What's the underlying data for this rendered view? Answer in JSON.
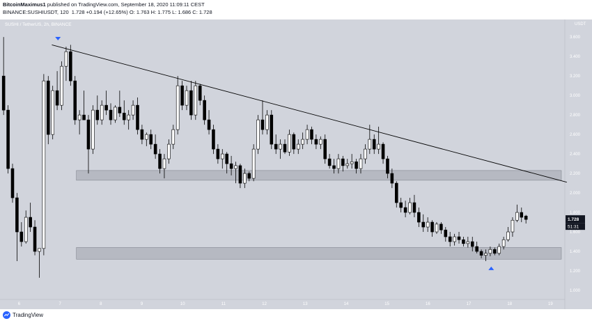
{
  "header": {
    "author": "BitcoinMaximus1",
    "published": "published on TradingView.com, September 18, 2020 11:09:11 CEST",
    "ticker_line": "BINANCE:SUSHIUSDT, 120",
    "last": "1.728",
    "change": "+0.194 (+12.65%)",
    "ohlc": "O: 1.763  H: 1.775  L: 1.686  C: 1.728"
  },
  "chart": {
    "symbol_label": "SUSHI / TetherUS, 2h, BINANCE",
    "currency": "USDT",
    "y_ticks": [
      "3.600",
      "3.400",
      "3.200",
      "3.000",
      "2.800",
      "2.600",
      "2.400",
      "2.200",
      "2.000",
      "1.800",
      "1.600",
      "1.400",
      "1.200",
      "1.000"
    ],
    "x_ticks": [
      "6",
      "7",
      "8",
      "9",
      "10",
      "11",
      "12",
      "13",
      "14",
      "15",
      "16",
      "17",
      "18",
      "19"
    ],
    "price_label": "1.728",
    "countdown": "51:31",
    "colors": {
      "background": "#d1d4dc",
      "up": "#ffffff",
      "down": "#000000",
      "marker": "#2962ff",
      "zone": "#9598a1"
    }
  },
  "chart_data": {
    "type": "candlestick",
    "pair": "SUSHI/USDT",
    "interval": "2h",
    "x_range": [
      5.6,
      19.3
    ],
    "ylim": [
      0.95,
      3.68
    ],
    "resistance_line": {
      "from": [
        6.8,
        3.52
      ],
      "to": [
        19.4,
        2.11
      ]
    },
    "support_zones": [
      [
        2.13,
        2.23
      ],
      [
        1.32,
        1.44
      ]
    ],
    "markers": [
      {
        "x": 6.95,
        "y": 3.58,
        "direction": "down"
      },
      {
        "x": 17.55,
        "y": 1.23,
        "direction": "up"
      }
    ],
    "candles": [
      {
        "o": 3.2,
        "h": 3.6,
        "l": 2.8,
        "c": 2.85
      },
      {
        "o": 2.85,
        "h": 2.9,
        "l": 2.2,
        "c": 2.25
      },
      {
        "o": 2.25,
        "h": 2.3,
        "l": 1.9,
        "c": 1.95
      },
      {
        "o": 1.95,
        "h": 2.0,
        "l": 1.3,
        "c": 1.6
      },
      {
        "o": 1.6,
        "h": 1.7,
        "l": 1.45,
        "c": 1.5
      },
      {
        "o": 1.5,
        "h": 1.82,
        "l": 1.48,
        "c": 1.75
      },
      {
        "o": 1.75,
        "h": 1.9,
        "l": 1.6,
        "c": 1.65
      },
      {
        "o": 1.65,
        "h": 1.72,
        "l": 1.36,
        "c": 1.4
      },
      {
        "o": 1.4,
        "h": 1.43,
        "l": 1.13,
        "c": 1.43
      },
      {
        "o": 1.43,
        "h": 3.22,
        "l": 1.36,
        "c": 3.15
      },
      {
        "o": 3.15,
        "h": 3.2,
        "l": 2.5,
        "c": 2.6
      },
      {
        "o": 2.6,
        "h": 3.1,
        "l": 2.55,
        "c": 3.05
      },
      {
        "o": 3.05,
        "h": 3.25,
        "l": 2.85,
        "c": 2.9
      },
      {
        "o": 2.9,
        "h": 3.35,
        "l": 2.85,
        "c": 3.3
      },
      {
        "o": 3.3,
        "h": 3.5,
        "l": 3.15,
        "c": 3.45
      },
      {
        "o": 3.45,
        "h": 3.52,
        "l": 3.1,
        "c": 3.15
      },
      {
        "o": 3.15,
        "h": 3.2,
        "l": 2.7,
        "c": 2.75
      },
      {
        "o": 2.75,
        "h": 2.85,
        "l": 2.6,
        "c": 2.8
      },
      {
        "o": 2.8,
        "h": 3.05,
        "l": 2.75,
        "c": 2.75
      },
      {
        "o": 2.75,
        "h": 2.8,
        "l": 2.2,
        "c": 2.45
      },
      {
        "o": 2.45,
        "h": 2.9,
        "l": 2.4,
        "c": 2.85
      },
      {
        "o": 2.85,
        "h": 3.0,
        "l": 2.7,
        "c": 2.75
      },
      {
        "o": 2.75,
        "h": 2.95,
        "l": 2.7,
        "c": 2.9
      },
      {
        "o": 2.9,
        "h": 3.05,
        "l": 2.8,
        "c": 2.85
      },
      {
        "o": 2.85,
        "h": 2.92,
        "l": 2.7,
        "c": 2.75
      },
      {
        "o": 2.75,
        "h": 2.9,
        "l": 2.72,
        "c": 2.88
      },
      {
        "o": 2.88,
        "h": 3.05,
        "l": 2.78,
        "c": 2.82
      },
      {
        "o": 2.82,
        "h": 2.95,
        "l": 2.7,
        "c": 2.75
      },
      {
        "o": 2.75,
        "h": 2.85,
        "l": 2.65,
        "c": 2.8
      },
      {
        "o": 2.8,
        "h": 2.95,
        "l": 2.75,
        "c": 2.9
      },
      {
        "o": 2.9,
        "h": 2.98,
        "l": 2.6,
        "c": 2.65
      },
      {
        "o": 2.65,
        "h": 2.7,
        "l": 2.5,
        "c": 2.55
      },
      {
        "o": 2.55,
        "h": 2.62,
        "l": 2.48,
        "c": 2.6
      },
      {
        "o": 2.6,
        "h": 2.65,
        "l": 2.45,
        "c": 2.5
      },
      {
        "o": 2.5,
        "h": 2.6,
        "l": 2.35,
        "c": 2.4
      },
      {
        "o": 2.4,
        "h": 2.45,
        "l": 2.2,
        "c": 2.25
      },
      {
        "o": 2.25,
        "h": 2.4,
        "l": 2.15,
        "c": 2.35
      },
      {
        "o": 2.35,
        "h": 2.55,
        "l": 2.3,
        "c": 2.5
      },
      {
        "o": 2.5,
        "h": 2.7,
        "l": 2.45,
        "c": 2.65
      },
      {
        "o": 2.65,
        "h": 3.2,
        "l": 2.6,
        "c": 3.1
      },
      {
        "o": 3.1,
        "h": 3.15,
        "l": 2.85,
        "c": 2.9
      },
      {
        "o": 2.9,
        "h": 3.1,
        "l": 2.85,
        "c": 3.05
      },
      {
        "o": 3.05,
        "h": 3.15,
        "l": 2.75,
        "c": 2.8
      },
      {
        "o": 2.8,
        "h": 3.15,
        "l": 2.75,
        "c": 3.1
      },
      {
        "o": 3.1,
        "h": 3.12,
        "l": 2.9,
        "c": 2.95
      },
      {
        "o": 2.95,
        "h": 3.0,
        "l": 2.7,
        "c": 2.75
      },
      {
        "o": 2.75,
        "h": 2.85,
        "l": 2.6,
        "c": 2.65
      },
      {
        "o": 2.65,
        "h": 2.7,
        "l": 2.4,
        "c": 2.45
      },
      {
        "o": 2.45,
        "h": 2.5,
        "l": 2.3,
        "c": 2.35
      },
      {
        "o": 2.35,
        "h": 2.45,
        "l": 2.25,
        "c": 2.4
      },
      {
        "o": 2.4,
        "h": 2.42,
        "l": 2.2,
        "c": 2.3
      },
      {
        "o": 2.3,
        "h": 2.38,
        "l": 2.18,
        "c": 2.25
      },
      {
        "o": 2.25,
        "h": 2.32,
        "l": 2.1,
        "c": 2.28
      },
      {
        "o": 2.28,
        "h": 2.3,
        "l": 2.05,
        "c": 2.1
      },
      {
        "o": 2.1,
        "h": 2.25,
        "l": 2.05,
        "c": 2.2
      },
      {
        "o": 2.2,
        "h": 2.22,
        "l": 2.12,
        "c": 2.15
      },
      {
        "o": 2.15,
        "h": 2.5,
        "l": 2.12,
        "c": 2.45
      },
      {
        "o": 2.45,
        "h": 2.8,
        "l": 2.4,
        "c": 2.75
      },
      {
        "o": 2.75,
        "h": 2.95,
        "l": 2.6,
        "c": 2.65
      },
      {
        "o": 2.65,
        "h": 2.85,
        "l": 2.6,
        "c": 2.8
      },
      {
        "o": 2.8,
        "h": 2.85,
        "l": 2.45,
        "c": 2.5
      },
      {
        "o": 2.5,
        "h": 2.6,
        "l": 2.4,
        "c": 2.45
      },
      {
        "o": 2.45,
        "h": 2.55,
        "l": 2.35,
        "c": 2.5
      },
      {
        "o": 2.5,
        "h": 2.55,
        "l": 2.4,
        "c": 2.42
      },
      {
        "o": 2.42,
        "h": 2.65,
        "l": 2.38,
        "c": 2.6
      },
      {
        "o": 2.6,
        "h": 2.62,
        "l": 2.4,
        "c": 2.45
      },
      {
        "o": 2.45,
        "h": 2.55,
        "l": 2.4,
        "c": 2.5
      },
      {
        "o": 2.5,
        "h": 2.62,
        "l": 2.45,
        "c": 2.55
      },
      {
        "o": 2.55,
        "h": 2.7,
        "l": 2.5,
        "c": 2.65
      },
      {
        "o": 2.65,
        "h": 2.68,
        "l": 2.5,
        "c": 2.55
      },
      {
        "o": 2.55,
        "h": 2.6,
        "l": 2.45,
        "c": 2.5
      },
      {
        "o": 2.5,
        "h": 2.58,
        "l": 2.45,
        "c": 2.55
      },
      {
        "o": 2.55,
        "h": 2.6,
        "l": 2.3,
        "c": 2.35
      },
      {
        "o": 2.35,
        "h": 2.4,
        "l": 2.25,
        "c": 2.28
      },
      {
        "o": 2.28,
        "h": 2.35,
        "l": 2.2,
        "c": 2.25
      },
      {
        "o": 2.25,
        "h": 2.4,
        "l": 2.2,
        "c": 2.35
      },
      {
        "o": 2.35,
        "h": 2.38,
        "l": 2.22,
        "c": 2.28
      },
      {
        "o": 2.28,
        "h": 2.35,
        "l": 2.25,
        "c": 2.3
      },
      {
        "o": 2.3,
        "h": 2.4,
        "l": 2.25,
        "c": 2.32
      },
      {
        "o": 2.32,
        "h": 2.35,
        "l": 2.2,
        "c": 2.25
      },
      {
        "o": 2.25,
        "h": 2.4,
        "l": 2.2,
        "c": 2.35
      },
      {
        "o": 2.35,
        "h": 2.5,
        "l": 2.3,
        "c": 2.45
      },
      {
        "o": 2.45,
        "h": 2.7,
        "l": 2.4,
        "c": 2.55
      },
      {
        "o": 2.55,
        "h": 2.6,
        "l": 2.4,
        "c": 2.45
      },
      {
        "o": 2.45,
        "h": 2.68,
        "l": 2.4,
        "c": 2.5
      },
      {
        "o": 2.5,
        "h": 2.52,
        "l": 2.3,
        "c": 2.35
      },
      {
        "o": 2.35,
        "h": 2.38,
        "l": 2.15,
        "c": 2.2
      },
      {
        "o": 2.2,
        "h": 2.25,
        "l": 2.05,
        "c": 2.1
      },
      {
        "o": 2.1,
        "h": 2.12,
        "l": 1.85,
        "c": 1.9
      },
      {
        "o": 1.9,
        "h": 1.95,
        "l": 1.8,
        "c": 1.85
      },
      {
        "o": 1.85,
        "h": 1.92,
        "l": 1.75,
        "c": 1.8
      },
      {
        "o": 1.8,
        "h": 1.95,
        "l": 1.78,
        "c": 1.9
      },
      {
        "o": 1.9,
        "h": 1.98,
        "l": 1.75,
        "c": 1.8
      },
      {
        "o": 1.8,
        "h": 1.85,
        "l": 1.65,
        "c": 1.7
      },
      {
        "o": 1.7,
        "h": 1.78,
        "l": 1.6,
        "c": 1.65
      },
      {
        "o": 1.65,
        "h": 1.75,
        "l": 1.6,
        "c": 1.7
      },
      {
        "o": 1.7,
        "h": 1.72,
        "l": 1.55,
        "c": 1.6
      },
      {
        "o": 1.6,
        "h": 1.7,
        "l": 1.58,
        "c": 1.68
      },
      {
        "o": 1.68,
        "h": 1.7,
        "l": 1.58,
        "c": 1.62
      },
      {
        "o": 1.62,
        "h": 1.65,
        "l": 1.5,
        "c": 1.55
      },
      {
        "o": 1.55,
        "h": 1.6,
        "l": 1.45,
        "c": 1.5
      },
      {
        "o": 1.5,
        "h": 1.58,
        "l": 1.46,
        "c": 1.55
      },
      {
        "o": 1.55,
        "h": 1.6,
        "l": 1.48,
        "c": 1.52
      },
      {
        "o": 1.52,
        "h": 1.55,
        "l": 1.45,
        "c": 1.48
      },
      {
        "o": 1.48,
        "h": 1.55,
        "l": 1.44,
        "c": 1.5
      },
      {
        "o": 1.5,
        "h": 1.55,
        "l": 1.4,
        "c": 1.45
      },
      {
        "o": 1.45,
        "h": 1.5,
        "l": 1.38,
        "c": 1.4
      },
      {
        "o": 1.4,
        "h": 1.42,
        "l": 1.33,
        "c": 1.36
      },
      {
        "o": 1.36,
        "h": 1.42,
        "l": 1.3,
        "c": 1.38
      },
      {
        "o": 1.38,
        "h": 1.45,
        "l": 1.35,
        "c": 1.42
      },
      {
        "o": 1.42,
        "h": 1.44,
        "l": 1.36,
        "c": 1.38
      },
      {
        "o": 1.38,
        "h": 1.48,
        "l": 1.36,
        "c": 1.45
      },
      {
        "o": 1.45,
        "h": 1.55,
        "l": 1.42,
        "c": 1.52
      },
      {
        "o": 1.52,
        "h": 1.65,
        "l": 1.5,
        "c": 1.6
      },
      {
        "o": 1.6,
        "h": 1.75,
        "l": 1.55,
        "c": 1.72
      },
      {
        "o": 1.72,
        "h": 1.88,
        "l": 1.7,
        "c": 1.8
      },
      {
        "o": 1.8,
        "h": 1.85,
        "l": 1.7,
        "c": 1.75
      },
      {
        "o": 1.763,
        "h": 1.775,
        "l": 1.686,
        "c": 1.728
      }
    ]
  }
}
